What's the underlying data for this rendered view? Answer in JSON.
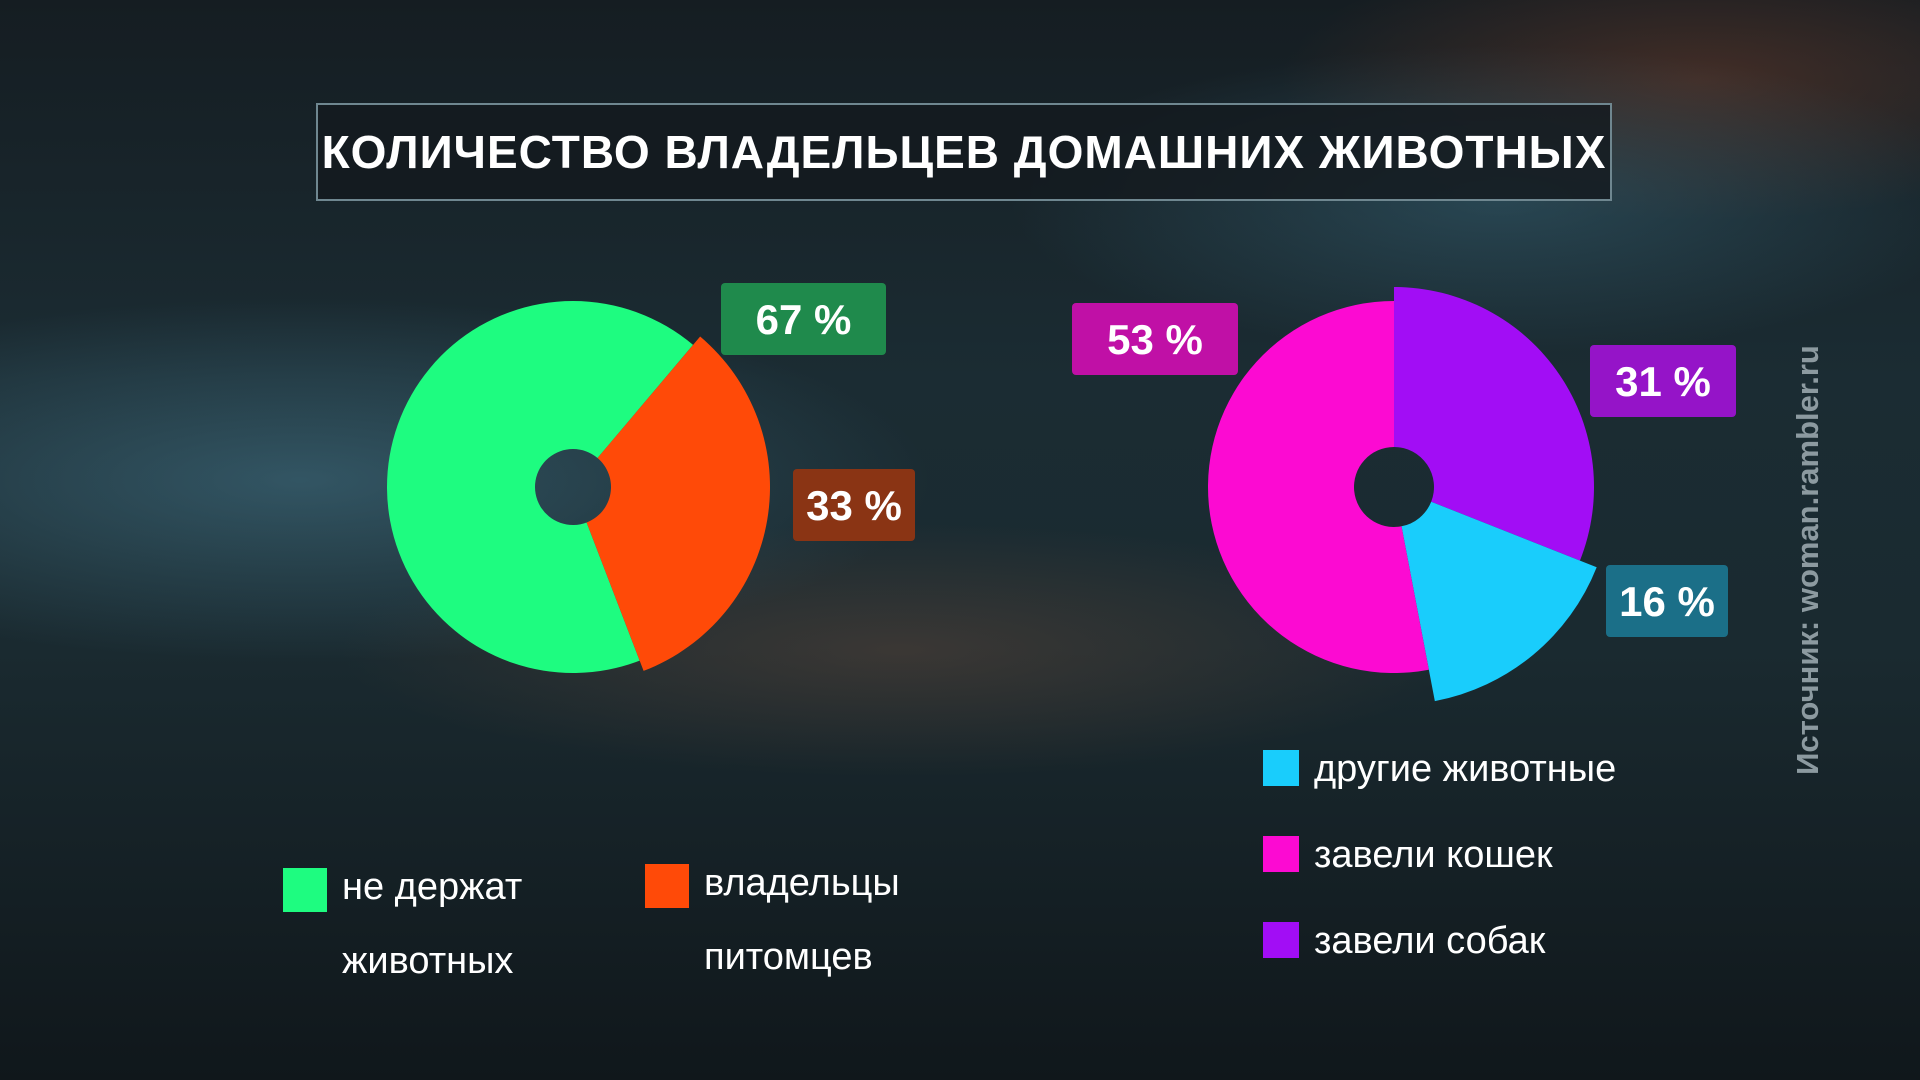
{
  "title": "КОЛИЧЕСТВО ВЛАДЕЛЬЦЕВ ДОМАШНИХ ЖИВОТНЫХ",
  "source": "Источник: woman.rambler.ru",
  "chart_data": [
    {
      "type": "pie",
      "title": "",
      "slices": [
        {
          "label": "не держат животных",
          "value": 67,
          "value_label": "67 %",
          "color": "#1efc80",
          "label_bg": "#1f8a4c"
        },
        {
          "label": "владельцы питомцев",
          "value": 33,
          "value_label": "33 %",
          "color": "#ff4a08",
          "label_bg": "#8a3414"
        }
      ],
      "legend": [
        "не держат\nживотных",
        "владельцы\nпитомцев"
      ],
      "legend_placement": "bottom"
    },
    {
      "type": "pie",
      "title": "",
      "slices": [
        {
          "label": "завели собак",
          "value": 31,
          "value_label": "31 %",
          "color": "#a20df5",
          "label_bg": "#9514c8"
        },
        {
          "label": "другие животные",
          "value": 16,
          "value_label": "16 %",
          "color": "#19cdfc",
          "label_bg": "#1b6f88"
        },
        {
          "label": "завели кошек",
          "value": 53,
          "value_label": "53 %",
          "color": "#fc0ad2",
          "label_bg": "#c010a6"
        }
      ],
      "legend": [
        "другие животные",
        "завели кошек",
        "завели собак"
      ],
      "legend_placement": "bottom"
    }
  ]
}
